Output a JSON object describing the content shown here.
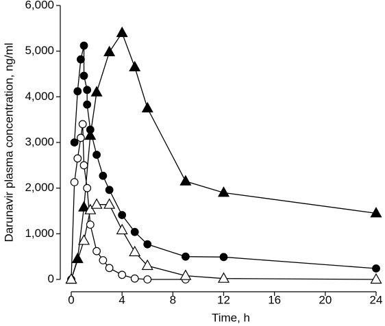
{
  "chart_data": {
    "type": "line",
    "xlabel": "Time, h",
    "ylabel": "Darunavir plasma concentration, ng/ml",
    "xlim": [
      0,
      24
    ],
    "xticks": [
      0,
      4,
      8,
      12,
      16,
      20,
      24
    ],
    "ylim": [
      0,
      6000
    ],
    "yticks": [
      0,
      {
        "value": 1000,
        "label": "1,000"
      },
      {
        "value": 2000,
        "label": "2,000"
      },
      {
        "value": 3000,
        "label": "3,000"
      },
      {
        "value": 4000,
        "label": "4,000"
      },
      {
        "value": 5000,
        "label": "5,000"
      },
      {
        "value": 6000,
        "label": "6,000"
      }
    ],
    "grid": false,
    "series": [
      {
        "color": "#000000",
        "marker": "circle",
        "filled": true,
        "x": [
          0.25,
          0.5,
          0.75,
          1,
          1,
          1.25,
          1.25,
          1.5,
          2,
          2.5,
          3,
          4,
          5,
          6,
          9,
          12,
          24
        ],
        "values": [
          3000,
          4120,
          4820,
          5120,
          4460,
          4150,
          3830,
          3280,
          2730,
          2270,
          1960,
          1410,
          1040,
          770,
          500,
          490,
          240
        ]
      },
      {
        "color": "#000000",
        "marker": "circle",
        "filled": false,
        "x": [
          0,
          0.25,
          0.5,
          0.75,
          0.9,
          1,
          1.25,
          1.5,
          2,
          2.5,
          3,
          4,
          5,
          6,
          9
        ],
        "values": [
          0,
          2130,
          2650,
          3100,
          3400,
          2500,
          2000,
          1200,
          620,
          420,
          250,
          100,
          20,
          0,
          0
        ]
      },
      {
        "color": "#000000",
        "marker": "triangle",
        "filled": true,
        "x": [
          0,
          0.5,
          1,
          1.5,
          2,
          3,
          4,
          5,
          6,
          9,
          12,
          24
        ],
        "values": [
          0,
          450,
          1580,
          3150,
          4100,
          4980,
          5400,
          4650,
          3750,
          2150,
          1900,
          1450
        ]
      },
      {
        "color": "#000000",
        "marker": "triangle",
        "filled": false,
        "x": [
          0,
          1,
          1.5,
          2,
          3,
          4,
          5,
          6,
          9,
          12,
          24
        ],
        "values": [
          0,
          850,
          1520,
          1640,
          1640,
          1080,
          600,
          300,
          80,
          20,
          0
        ]
      }
    ]
  }
}
